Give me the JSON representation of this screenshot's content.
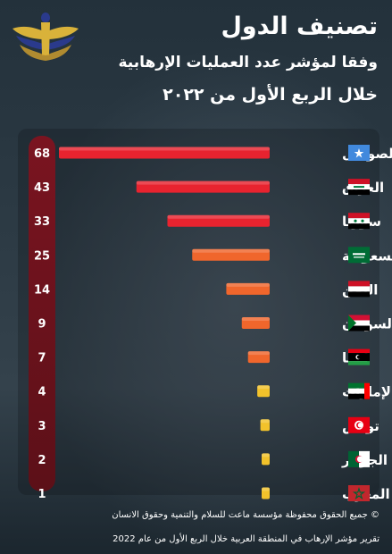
{
  "header": {
    "title": "تصنيف الدول",
    "subtitle": "وفقا لمؤشر عدد العمليات الإرهابية",
    "period": "خلال الربع الأول من ٢٠٢٢"
  },
  "footer": {
    "copyright": "© جميع الحقوق محفوظة مؤسسة ماعت للسلام والتنمية وحقوق الانسان",
    "source": "تقرير مؤشر الإرهاب في المنطقة العربية خلال الربع الأول من عام 2022"
  },
  "colors": {
    "red": "#e8232f",
    "orange": "#f0662c",
    "yellow": "#f2c22b"
  },
  "chart_data": {
    "type": "bar",
    "orientation": "horizontal",
    "title": "",
    "xlabel": "",
    "ylabel": "",
    "xlim": [
      0,
      68
    ],
    "grid": false,
    "categories": [
      "الصومال",
      "العراق",
      "سوريا",
      "السعودية",
      "اليمن",
      "السودان",
      "ليبيا",
      "الإمارات",
      "تونس",
      "الجزائر",
      "المغرب"
    ],
    "values": [
      68,
      43,
      33,
      25,
      14,
      9,
      7,
      4,
      3,
      2,
      1
    ],
    "value_labels": [
      "68",
      "43",
      "33",
      "25",
      "14",
      "9",
      "7",
      "4",
      "3",
      "2",
      "1"
    ],
    "bar_colors": [
      "#e8232f",
      "#e8232f",
      "#e8232f",
      "#f0662c",
      "#f0662c",
      "#f0662c",
      "#f0662c",
      "#f2c22b",
      "#f2c22b",
      "#f2c22b",
      "#f2c22b"
    ],
    "flags": [
      "somalia-flag-icon",
      "iraq-flag-icon",
      "syria-flag-icon",
      "saudi-arabia-flag-icon",
      "yemen-flag-icon",
      "sudan-flag-icon",
      "libya-flag-icon",
      "uae-flag-icon",
      "tunisia-flag-icon",
      "algeria-flag-icon",
      "morocco-flag-icon"
    ]
  }
}
